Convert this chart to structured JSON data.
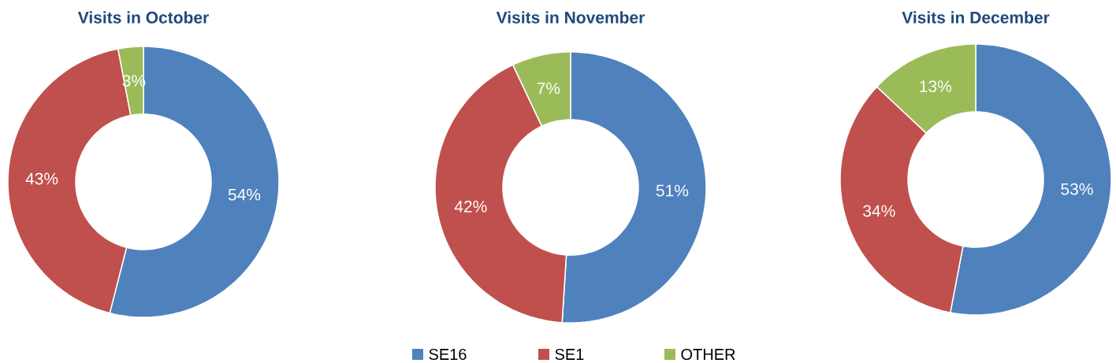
{
  "chart_data": [
    {
      "type": "donut",
      "title": "Visits in October",
      "categories": [
        null,
        null,
        null
      ],
      "values": [
        54,
        43,
        3
      ],
      "value_labels": [
        "54%",
        "43%",
        "3%"
      ],
      "colors": [
        "#4f81bd",
        "#c0504d",
        "#9bbb59"
      ]
    },
    {
      "type": "donut",
      "title": "Visits in November",
      "categories": [
        "SE16",
        "SE1",
        "OTHER"
      ],
      "values": [
        51,
        42,
        7
      ],
      "value_labels": [
        "51%",
        "42%",
        "7%"
      ],
      "colors": [
        "#4f81bd",
        "#c0504d",
        "#9bbb59"
      ],
      "legend": "bottom"
    },
    {
      "type": "donut",
      "title": "Visits in December",
      "categories": [
        null,
        null,
        null
      ],
      "values": [
        53,
        34,
        13
      ],
      "value_labels": [
        "53%",
        "34%",
        "13%"
      ],
      "colors": [
        "#4f81bd",
        "#c0504d",
        "#9bbb59"
      ]
    }
  ]
}
